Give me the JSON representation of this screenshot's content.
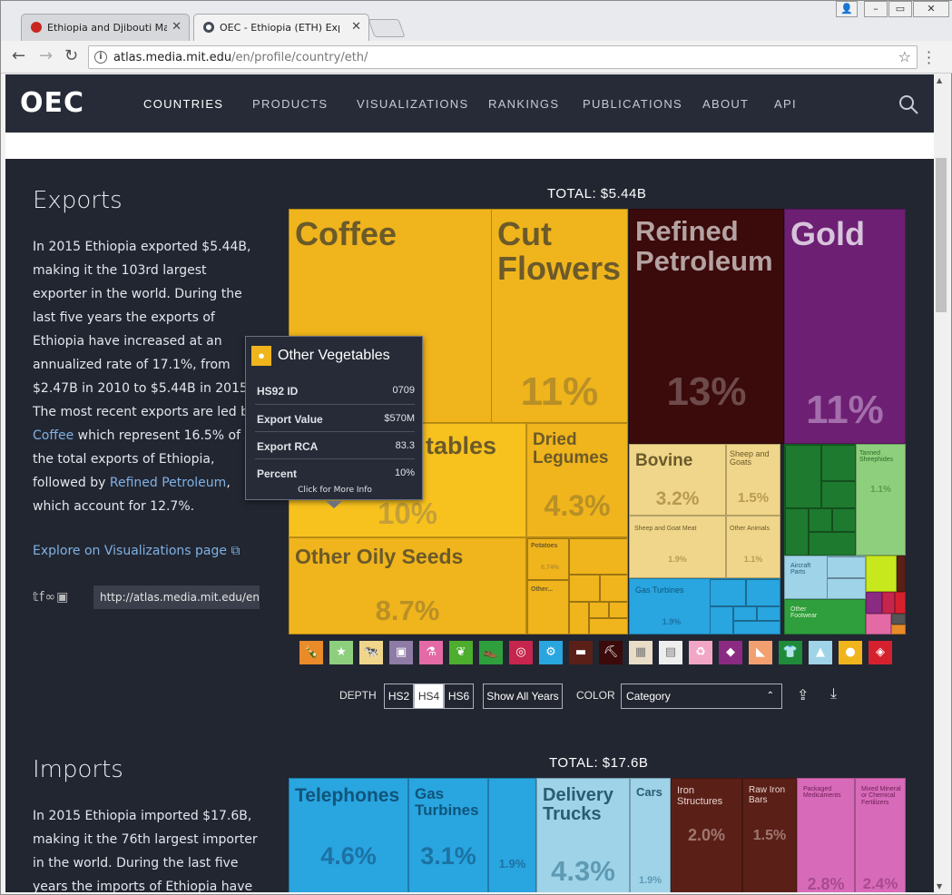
{
  "browser": {
    "tabs": [
      {
        "title": "Ethiopia and Djibouti March",
        "active": false,
        "favicon_color": "#c8271f"
      },
      {
        "title": "OEC - Ethiopia (ETH) Export",
        "active": true,
        "favicon_color": "#444a56"
      }
    ],
    "url_host": "atlas.media.mit.edu",
    "url_path": "/en/profile/country/eth/"
  },
  "nav": {
    "logo": "OEC",
    "items": [
      "COUNTRIES",
      "PRODUCTS",
      "VISUALIZATIONS",
      "RANKINGS",
      "PUBLICATIONS",
      "ABOUT",
      "API"
    ]
  },
  "exports": {
    "heading": "Exports",
    "para_1": "In 2015 Ethiopia exported $5.44B, making it the 103rd largest exporter in the world. During the last five years the exports of Ethiopia have increased at an annualized rate of 17.1%, from $2.47B in 2010 to $5.44B in 2015. The most recent exports are led by ",
    "link_1": "Coffee",
    "para_2": " which represent 16.5% of the total exports of Ethiopia, followed by ",
    "link_2": "Refined Petroleum",
    "para_3": ", which account for 12.7%.",
    "explore_link": "Explore on Visualizations page",
    "share_url": "http://atlas.media.mit.edu/en/",
    "total": "TOTAL: $5.44B",
    "blocks": {
      "coffee": {
        "label": "Coffee",
        "pct": ""
      },
      "cut_flowers": {
        "label": "Cut Flowers",
        "pct": "11%"
      },
      "refined_petroleum": {
        "label": "Refined Petroleum",
        "pct": "13%"
      },
      "gold": {
        "label": "Gold",
        "pct": "11%"
      },
      "other_vegetables": {
        "label": "tables",
        "pct": "10%"
      },
      "dried_legumes": {
        "label": "Dried Legumes",
        "pct": "4.3%"
      },
      "other_oily_seeds": {
        "label": "Other Oily Seeds",
        "pct": "8.7%"
      },
      "potatoes": {
        "label": "Potatoes",
        "pct": "0.74%"
      },
      "other_small": {
        "label": "Other...",
        "pct": ""
      },
      "bovine": {
        "label": "Bovine",
        "pct": "3.2%"
      },
      "sheep_goats": {
        "label": "Sheep and Goats",
        "pct": "1.5%"
      },
      "sheep_goat_meat": {
        "label": "Sheep and Goat Meat",
        "pct": "1.9%"
      },
      "other_animals": {
        "label": "Other Animals",
        "pct": "1.1%"
      },
      "gas_turbines": {
        "label": "Gas Turbines",
        "pct": "1.9%"
      },
      "tanned_sheephides": {
        "label": "Tanned Sheephides",
        "pct": "1.1%"
      },
      "aircraft_parts": {
        "label": "Aircraft Parts",
        "pct": ""
      },
      "other_footwear": {
        "label": "Other Footwear",
        "pct": ""
      }
    }
  },
  "categories": [
    {
      "color": "#e88b28",
      "icon": "bottle-icon"
    },
    {
      "color": "#8ecf7e",
      "icon": "star-icon"
    },
    {
      "color": "#f0d68a",
      "icon": "animal-icon"
    },
    {
      "color": "#8e7ba6",
      "icon": "picture-icon"
    },
    {
      "color": "#e46aa6",
      "icon": "flask-icon"
    },
    {
      "color": "#4dad2d",
      "icon": "wheat-icon"
    },
    {
      "color": "#2e9f3c",
      "icon": "shoe-icon"
    },
    {
      "color": "#c6254d",
      "icon": "target-icon"
    },
    {
      "color": "#29a5e0",
      "icon": "gears-icon"
    },
    {
      "color": "#5a2018",
      "icon": "anvil-icon"
    },
    {
      "color": "#3b0a0a",
      "icon": "pickaxe-icon"
    },
    {
      "color": "#e9ddc8",
      "icon": "box-icon"
    },
    {
      "color": "#eeeeee",
      "icon": "paper-icon"
    },
    {
      "color": "#f2a6c6",
      "icon": "recycle-icon"
    },
    {
      "color": "#8b2a82",
      "icon": "gem-icon"
    },
    {
      "color": "#f3a070",
      "icon": "ruler-icon"
    },
    {
      "color": "#1e8a3a",
      "icon": "shirt-icon"
    },
    {
      "color": "#9fd3e8",
      "icon": "road-icon"
    },
    {
      "color": "#f0b41c",
      "icon": "pumpkin-icon"
    },
    {
      "color": "#d5212e",
      "icon": "tag-icon"
    }
  ],
  "controls": {
    "depth_label": "DEPTH",
    "depth_options": [
      "HS2",
      "HS4",
      "HS6"
    ],
    "depth_selected": "HS4",
    "show_all_years": "Show All Years",
    "color_label": "COLOR",
    "color_value": "Category"
  },
  "tooltip": {
    "title": "Other Vegetables",
    "rows": [
      {
        "key": "HS92 ID",
        "value": "0709"
      },
      {
        "key": "Export Value",
        "value": "$570M"
      },
      {
        "key": "Export RCA",
        "value": "83.3"
      },
      {
        "key": "Percent",
        "value": "10%"
      }
    ],
    "more": "Click for More Info"
  },
  "imports": {
    "heading": "Imports",
    "para": "In 2015 Ethiopia imported $17.6B, making it the 76th largest importer in the world. During the last five years the imports of Ethiopia have",
    "total": "TOTAL: $17.6B",
    "blocks": {
      "telephones": {
        "label": "Telephones",
        "pct": "4.6%"
      },
      "gas_turbines": {
        "label": "Gas Turbines",
        "pct": "3.1%"
      },
      "unlabeled": {
        "label": "",
        "pct": "1.9%"
      },
      "delivery_trucks": {
        "label": "Delivery Trucks",
        "pct": "4.3%"
      },
      "cars": {
        "label": "Cars",
        "pct": "1.9%"
      },
      "iron_structures": {
        "label": "Iron Structures",
        "pct": "2.0%"
      },
      "raw_iron_bars": {
        "label": "Raw Iron Bars",
        "pct": "1.5%"
      },
      "packaged_medicaments": {
        "label": "Packaged Medicaments",
        "pct": "2.8%"
      },
      "mixed_fertilizers": {
        "label": "Mixed Mineral or Chemical Fertilizers",
        "pct": "2.4%"
      }
    }
  }
}
